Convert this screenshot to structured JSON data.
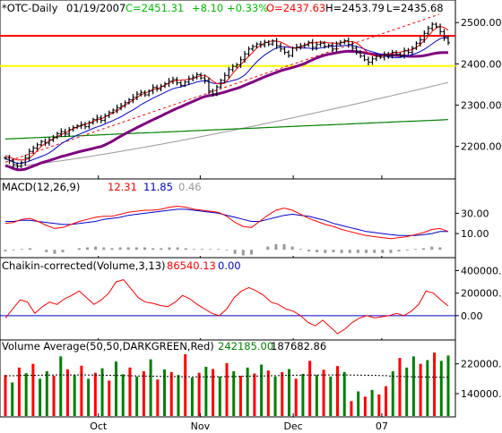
{
  "chart_data": [
    {
      "type": "candlestick",
      "title": "*OTC-Daily",
      "date": "01/19/2007",
      "readout": {
        "close": "C=2451.31",
        "change": "+8.10",
        "pct_change": "+0.33%",
        "open": "O=2437.63",
        "high": "H=2453.79",
        "low": "L=2435.68"
      },
      "x_ticks": [
        "Oct",
        "Nov",
        "Dec",
        "07"
      ],
      "y_ticks": [
        2200,
        2300,
        2400,
        2500
      ],
      "ylim": [
        2130,
        2520
      ],
      "horizontal_lines": [
        {
          "value": 2468,
          "color": "#ff0000"
        },
        {
          "value": 2395,
          "color": "#ffff00"
        }
      ],
      "close_series": [
        2172,
        2165,
        2156,
        2152,
        2161,
        2172,
        2188,
        2196,
        2204,
        2212,
        2208,
        2216,
        2222,
        2231,
        2236,
        2230,
        2241,
        2246,
        2250,
        2253,
        2248,
        2257,
        2265,
        2269,
        2263,
        2274,
        2282,
        2288,
        2294,
        2299,
        2306,
        2313,
        2319,
        2327,
        2331,
        2325,
        2334,
        2343,
        2339,
        2346,
        2352,
        2358,
        2362,
        2354,
        2348,
        2356,
        2364,
        2368,
        2374,
        2366,
        2360,
        2334,
        2327,
        2344,
        2360,
        2372,
        2386,
        2394,
        2398,
        2410,
        2424,
        2436,
        2442,
        2448,
        2446,
        2452,
        2448,
        2455,
        2444,
        2436,
        2428,
        2420,
        2438,
        2441,
        2444,
        2446,
        2452,
        2440,
        2447,
        2450,
        2442,
        2445,
        2436,
        2448,
        2452,
        2456,
        2447,
        2438,
        2428,
        2419,
        2410,
        2404,
        2412,
        2418,
        2416,
        2422,
        2419,
        2428,
        2424,
        2420,
        2432,
        2428,
        2438,
        2450,
        2458,
        2474,
        2486,
        2496,
        2490,
        2478,
        2462,
        2451
      ],
      "indicators": {
        "ma_short": {
          "color": "#ff0000"
        },
        "ma_mid": {
          "color": "#0000cc"
        },
        "ma_long": {
          "color": "#800080"
        },
        "ma_gray": {
          "color": "#999999",
          "start": 2150,
          "end": 2355
        },
        "ma_green": {
          "color": "#008000",
          "start": 2218,
          "end": 2265
        },
        "trendline": {
          "color": "#ff0000",
          "style": "dashed",
          "start": 2162,
          "end": 2520
        }
      }
    },
    {
      "type": "line",
      "title": "MACD(12,26,9)",
      "values": {
        "macd": "12.31",
        "signal": "11.85",
        "histogram": "0.46"
      },
      "y_ticks": [
        10.0,
        30.0
      ],
      "ylim": [
        -12,
        48
      ],
      "colors": {
        "macd": "#ff0000",
        "signal": "#0000cc",
        "histogram": "#999999"
      },
      "macd_series": [
        20,
        21,
        24,
        25,
        22,
        18,
        15,
        16,
        19,
        22,
        24,
        26,
        27,
        27,
        29,
        31,
        32,
        33,
        33,
        34,
        36,
        37,
        36,
        34,
        33,
        32,
        31,
        27,
        21,
        17,
        16,
        22,
        28,
        33,
        35,
        33,
        29,
        25,
        22,
        19,
        17,
        14,
        12,
        10,
        8,
        7,
        6,
        5,
        6,
        7,
        9,
        11,
        14,
        15,
        12
      ],
      "signal_series": [
        22,
        22,
        23,
        23,
        22,
        21,
        20,
        19,
        19,
        20,
        21,
        22,
        24,
        25,
        26,
        28,
        29,
        30,
        31,
        32,
        33,
        34,
        34,
        33,
        32,
        31,
        30,
        28,
        26,
        24,
        22,
        22,
        24,
        26,
        28,
        29,
        28,
        27,
        25,
        23,
        20,
        18,
        16,
        14,
        12,
        11,
        10,
        9,
        8,
        8,
        8,
        9,
        10,
        12,
        12
      ],
      "histogram_series": [
        -2,
        -1,
        1,
        2,
        0,
        -3,
        -5,
        -3,
        0,
        2,
        3,
        4,
        3,
        2,
        3,
        3,
        3,
        3,
        2,
        2,
        3,
        3,
        2,
        1,
        1,
        1,
        1,
        -1,
        -5,
        -7,
        -6,
        0,
        4,
        7,
        7,
        4,
        1,
        -2,
        -3,
        -4,
        -3,
        -4,
        -4,
        -4,
        -4,
        -4,
        -4,
        -4,
        -2,
        -1,
        1,
        2,
        4,
        3,
        0
      ]
    },
    {
      "type": "line",
      "title": "Chaikin-corrected(Volume,3,13)",
      "values": {
        "chaikin": "86540.13",
        "zero": "0.00"
      },
      "y_ticks": [
        0.0,
        200000.0,
        400000.0
      ],
      "ylim": [
        -200000,
        420000
      ],
      "colors": {
        "chaikin": "#ff0000",
        "zero": "#0000cc"
      },
      "series": [
        -20000,
        60000,
        140000,
        120000,
        20000,
        80000,
        120000,
        100000,
        150000,
        180000,
        220000,
        160000,
        100000,
        140000,
        200000,
        300000,
        320000,
        240000,
        160000,
        120000,
        110000,
        90000,
        80000,
        120000,
        180000,
        150000,
        100000,
        60000,
        20000,
        0,
        60000,
        160000,
        220000,
        250000,
        220000,
        180000,
        120000,
        100000,
        60000,
        40000,
        0,
        -60000,
        -90000,
        -40000,
        -100000,
        -160000,
        -120000,
        -60000,
        -20000,
        0,
        -20000,
        -10000,
        0,
        20000,
        0,
        40000,
        100000,
        220000,
        200000,
        140000,
        86540
      ]
    },
    {
      "type": "bar",
      "title": "Volume Average(50,50,DARKGREEN,Red)",
      "values": {
        "volume": "242185.00",
        "average": "187682.86"
      },
      "y_ticks": [
        140000.0,
        220000.0
      ],
      "ylim": [
        80000,
        260000
      ],
      "colors": {
        "up": "#008000",
        "down": "#ff0000",
        "average": "#000000"
      },
      "average_value": 187682.86,
      "series": [
        {
          "v": 190000,
          "u": 0
        },
        {
          "v": 170000,
          "u": 1
        },
        {
          "v": 210000,
          "u": 0
        },
        {
          "v": 195000,
          "u": 1
        },
        {
          "v": 220000,
          "u": 0
        },
        {
          "v": 180000,
          "u": 1
        },
        {
          "v": 200000,
          "u": 1
        },
        {
          "v": 188000,
          "u": 0
        },
        {
          "v": 240000,
          "u": 1
        },
        {
          "v": 205000,
          "u": 0
        },
        {
          "v": 190000,
          "u": 1
        },
        {
          "v": 215000,
          "u": 0
        },
        {
          "v": 180000,
          "u": 1
        },
        {
          "v": 196000,
          "u": 0
        },
        {
          "v": 208000,
          "u": 1
        },
        {
          "v": 175000,
          "u": 0
        },
        {
          "v": 226000,
          "u": 1
        },
        {
          "v": 192000,
          "u": 1
        },
        {
          "v": 210000,
          "u": 0
        },
        {
          "v": 186000,
          "u": 1
        },
        {
          "v": 200000,
          "u": 0
        },
        {
          "v": 232000,
          "u": 1
        },
        {
          "v": 178000,
          "u": 0
        },
        {
          "v": 205000,
          "u": 1
        },
        {
          "v": 198000,
          "u": 0
        },
        {
          "v": 190000,
          "u": 1
        },
        {
          "v": 246000,
          "u": 0
        },
        {
          "v": 183000,
          "u": 1
        },
        {
          "v": 196000,
          "u": 0
        },
        {
          "v": 212000,
          "u": 1
        },
        {
          "v": 206000,
          "u": 0
        },
        {
          "v": 186000,
          "u": 1
        },
        {
          "v": 222000,
          "u": 0
        },
        {
          "v": 200000,
          "u": 1
        },
        {
          "v": 188000,
          "u": 0
        },
        {
          "v": 210000,
          "u": 1
        },
        {
          "v": 194000,
          "u": 0
        },
        {
          "v": 218000,
          "u": 1
        },
        {
          "v": 202000,
          "u": 0
        },
        {
          "v": 186000,
          "u": 1
        },
        {
          "v": 198000,
          "u": 0
        },
        {
          "v": 206000,
          "u": 1
        },
        {
          "v": 180000,
          "u": 0
        },
        {
          "v": 193000,
          "u": 1
        },
        {
          "v": 228000,
          "u": 0
        },
        {
          "v": 190000,
          "u": 1
        },
        {
          "v": 204000,
          "u": 0
        },
        {
          "v": 186000,
          "u": 1
        },
        {
          "v": 214000,
          "u": 0
        },
        {
          "v": 198000,
          "u": 1
        },
        {
          "v": 120000,
          "u": 0
        },
        {
          "v": 146000,
          "u": 1
        },
        {
          "v": 132000,
          "u": 0
        },
        {
          "v": 150000,
          "u": 1
        },
        {
          "v": 138000,
          "u": 0
        },
        {
          "v": 160000,
          "u": 0
        },
        {
          "v": 200000,
          "u": 1
        },
        {
          "v": 236000,
          "u": 0
        },
        {
          "v": 210000,
          "u": 1
        },
        {
          "v": 240000,
          "u": 1
        },
        {
          "v": 220000,
          "u": 0
        },
        {
          "v": 230000,
          "u": 1
        },
        {
          "v": 250000,
          "u": 0
        },
        {
          "v": 228000,
          "u": 1
        },
        {
          "v": 242185,
          "u": 1
        }
      ]
    }
  ]
}
